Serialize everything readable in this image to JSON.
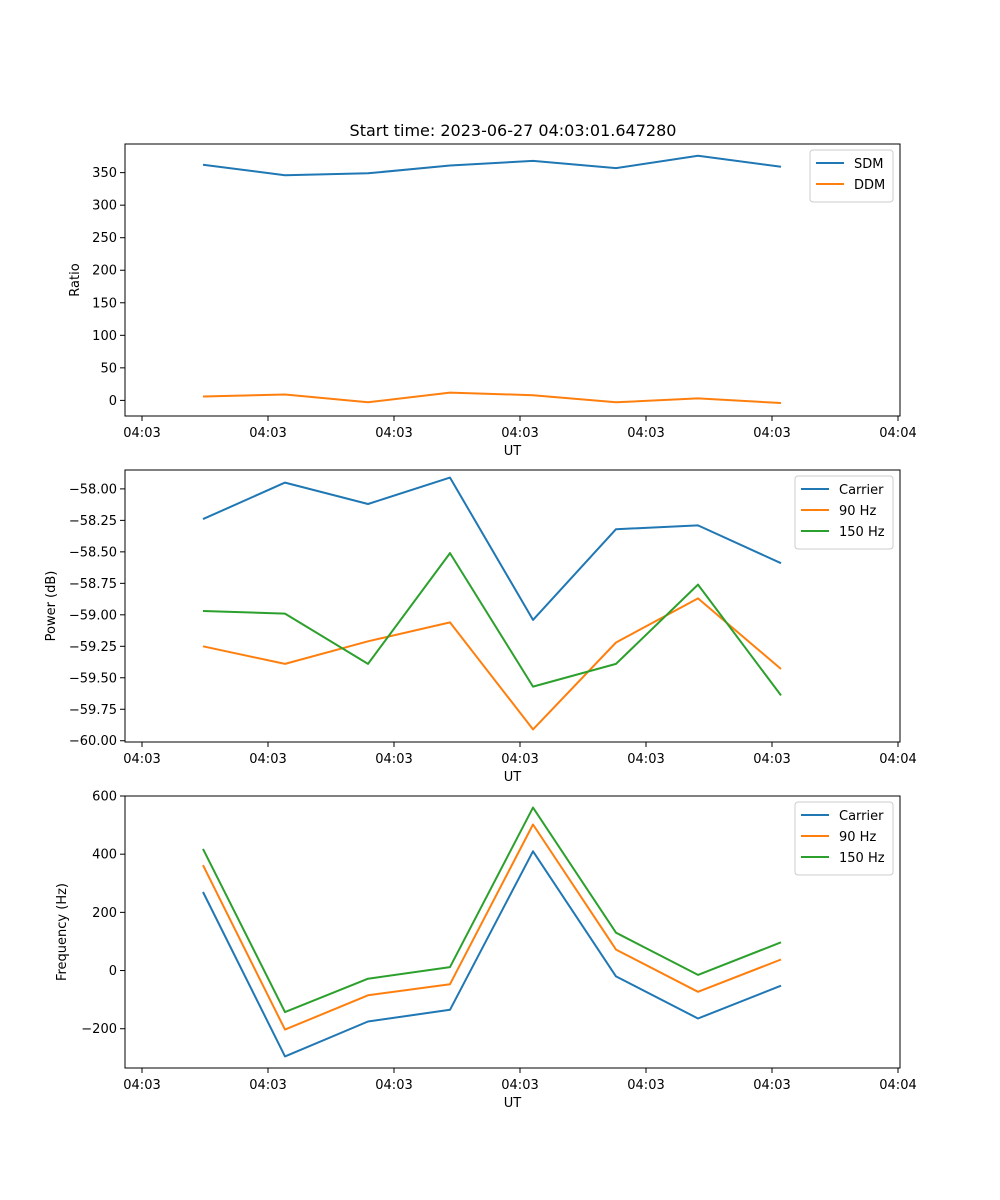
{
  "title": "Start time: 2023-06-27 04:03:01.647280",
  "chart_data": [
    {
      "type": "line",
      "xlabel": "UT",
      "ylabel": "Ratio",
      "x_tick_labels": [
        "04:03",
        "04:03",
        "04:03",
        "04:03",
        "04:03",
        "04:03",
        "04:04"
      ],
      "y_ticks": [
        0,
        50,
        100,
        150,
        200,
        250,
        300,
        350
      ],
      "ylim": [
        -24,
        394
      ],
      "legend_position": "top-right",
      "series": [
        {
          "name": "SDM",
          "color": "#1f77b4",
          "values": [
            362,
            346,
            349,
            361,
            368,
            357,
            376,
            359
          ]
        },
        {
          "name": "DDM",
          "color": "#ff7f0e",
          "values": [
            6,
            9,
            -3,
            12,
            8,
            -3,
            3,
            -4
          ]
        }
      ]
    },
    {
      "type": "line",
      "xlabel": "UT",
      "ylabel": "Power (dB)",
      "x_tick_labels": [
        "04:03",
        "04:03",
        "04:03",
        "04:03",
        "04:03",
        "04:03",
        "04:04"
      ],
      "y_ticks": [
        -60.0,
        -59.75,
        -59.5,
        -59.25,
        -59.0,
        -58.75,
        -58.5,
        -58.25,
        -58.0
      ],
      "y_tick_labels": [
        "−60.00",
        "−59.75",
        "−59.50",
        "−59.25",
        "−59.00",
        "−58.75",
        "−58.50",
        "−58.25",
        "−58.00"
      ],
      "ylim": [
        -60.01,
        -57.85
      ],
      "legend_position": "top-right",
      "series": [
        {
          "name": "Carrier",
          "color": "#1f77b4",
          "values": [
            -58.24,
            -57.95,
            -58.12,
            -57.91,
            -59.04,
            -58.32,
            -58.29,
            -58.59
          ]
        },
        {
          "name": "90 Hz",
          "color": "#ff7f0e",
          "values": [
            -59.25,
            -59.39,
            -59.21,
            -59.06,
            -59.91,
            -59.22,
            -58.87,
            -59.43
          ]
        },
        {
          "name": "150 Hz",
          "color": "#2ca02c",
          "values": [
            -58.97,
            -58.99,
            -59.39,
            -58.51,
            -59.57,
            -59.39,
            -58.76,
            -59.64
          ]
        }
      ]
    },
    {
      "type": "line",
      "xlabel": "UT",
      "ylabel": "Frequency (Hz)",
      "x_tick_labels": [
        "04:03",
        "04:03",
        "04:03",
        "04:03",
        "04:03",
        "04:03",
        "04:04"
      ],
      "y_ticks": [
        -200,
        0,
        200,
        400,
        600
      ],
      "y_tick_labels": [
        "−200",
        "0",
        "200",
        "400",
        "600"
      ],
      "ylim": [
        -335,
        600
      ],
      "legend_position": "top-right",
      "series": [
        {
          "name": "Carrier",
          "color": "#1f77b4",
          "values": [
            270,
            -295,
            -175,
            -135,
            410,
            -20,
            -165,
            -52
          ]
        },
        {
          "name": "90 Hz",
          "color": "#ff7f0e",
          "values": [
            362,
            -203,
            -85,
            -47,
            502,
            72,
            -73,
            38
          ]
        },
        {
          "name": "150 Hz",
          "color": "#2ca02c",
          "values": [
            418,
            -143,
            -28,
            12,
            560,
            130,
            -15,
            97
          ]
        }
      ]
    }
  ]
}
